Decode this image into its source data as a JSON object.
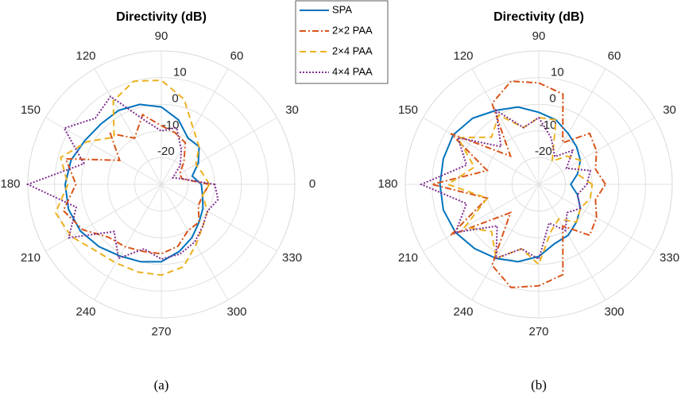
{
  "chart_data": [
    {
      "type": "polar",
      "title": "Directivity (dB)",
      "caption": "(a)",
      "rlim": [
        -30,
        20
      ],
      "rticks": [
        -20,
        -10,
        0,
        10
      ],
      "thetaticks": [
        0,
        30,
        60,
        90,
        120,
        150,
        180,
        210,
        240,
        270,
        300,
        330
      ],
      "theta": [
        0,
        15,
        30,
        45,
        60,
        75,
        90,
        105,
        120,
        135,
        150,
        165,
        180,
        195,
        210,
        225,
        240,
        255,
        270,
        285,
        300,
        315,
        330,
        345
      ],
      "grid": true,
      "series": [
        {
          "name": "SPA",
          "color": "#0072bd",
          "style": "solid",
          "values": [
            -15,
            -18,
            -14,
            -10,
            -10,
            -5,
            -1,
            1,
            2,
            2,
            3,
            5,
            6,
            6,
            5,
            3,
            1,
            0,
            -1,
            -4,
            -7,
            -10,
            -12,
            -14
          ]
        },
        {
          "name": "2×2 PAA",
          "color": "#d95319",
          "style": "dashdot",
          "values": [
            -12,
            -22,
            -22,
            -18,
            -12,
            -10,
            -8,
            -3,
            -10,
            -3,
            -12,
            7,
            2,
            8,
            4,
            -2,
            -3,
            -4,
            -4,
            -6,
            -10,
            -10,
            -14,
            -14
          ]
        },
        {
          "name": "2×4 PAA",
          "color": "#edb120",
          "style": "dashed",
          "values": [
            -12,
            -14,
            -15,
            -10,
            -6,
            3,
            9,
            10,
            6,
            -5,
            2,
            9,
            5,
            11,
            9,
            5,
            4,
            4,
            4,
            2,
            -4,
            -8,
            -10,
            -14
          ]
        },
        {
          "name": "4×4 PAA",
          "color": "#7e2f8e",
          "style": "dotted",
          "values": [
            -10,
            -22,
            -25,
            -20,
            -15,
            -8,
            -10,
            -5,
            8,
            5,
            12,
            0,
            20,
            3,
            10,
            -5,
            2,
            -5,
            -2,
            -3,
            -5,
            -8,
            -10,
            -8
          ]
        }
      ]
    },
    {
      "type": "polar",
      "title": "Directivity (dB)",
      "caption": "(b)",
      "rlim": [
        -30,
        20
      ],
      "rticks": [
        -20,
        -10,
        0,
        10
      ],
      "thetaticks": [
        0,
        30,
        60,
        90,
        120,
        150,
        180,
        210,
        240,
        270,
        300,
        330
      ],
      "theta": [
        0,
        15,
        30,
        45,
        60,
        75,
        90,
        105,
        120,
        135,
        150,
        165,
        180,
        195,
        210,
        225,
        240,
        255,
        270,
        285,
        300,
        315,
        330,
        345
      ],
      "grid": true,
      "series": [
        {
          "color": "#0072bd",
          "style": "solid",
          "values": [
            -18,
            -15,
            -12,
            -10,
            -8,
            -5,
            -3,
            0,
            2,
            5,
            7,
            7,
            7,
            7,
            6,
            4,
            2,
            0,
            -3,
            -7,
            -8,
            -10,
            -12,
            -15
          ]
        },
        {
          "color": "#d95319",
          "style": "dashdot",
          "values": [
            -5,
            -8,
            -5,
            -3,
            -12,
            5,
            8,
            10,
            5,
            -15,
            8,
            -10,
            10,
            -10,
            8,
            -15,
            5,
            10,
            8,
            5,
            -12,
            -3,
            -5,
            -8
          ]
        },
        {
          "color": "#edb120",
          "style": "dashed",
          "values": [
            -10,
            -15,
            -12,
            -15,
            -20,
            -5,
            -5,
            -8,
            0,
            -5,
            5,
            -5,
            4,
            -10,
            2,
            -5,
            2,
            -5,
            0,
            -12,
            -15,
            -10,
            -12,
            -10
          ]
        },
        {
          "color": "#7e2f8e",
          "style": "dotted",
          "values": [
            -12,
            -10,
            -18,
            -12,
            -18,
            -12,
            -5,
            -8,
            2,
            -10,
            5,
            -2,
            14,
            -2,
            6,
            -8,
            2,
            -5,
            -2,
            -15,
            -10,
            -15,
            -12,
            -15
          ]
        }
      ]
    }
  ]
}
